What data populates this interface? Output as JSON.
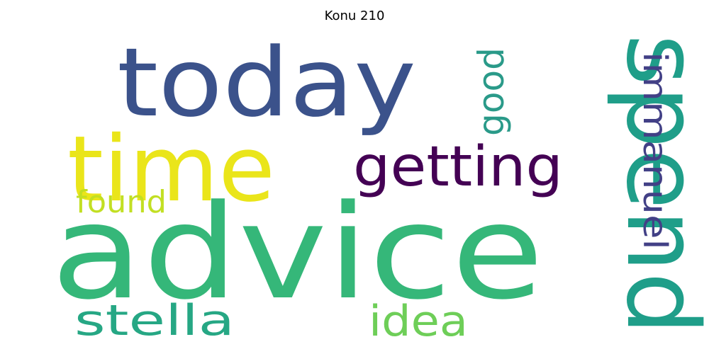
{
  "title": "Konu 210",
  "words": [
    {
      "id": "advice",
      "text": "advice",
      "color": "#35b779"
    },
    {
      "id": "today",
      "text": "today",
      "color": "#3b528b"
    },
    {
      "id": "time",
      "text": "time",
      "color": "#eae51a"
    },
    {
      "id": "spend",
      "text": "spend",
      "color": "#1f9e89"
    },
    {
      "id": "getting",
      "text": "getting",
      "color": "#440154"
    },
    {
      "id": "stella",
      "text": "stella",
      "color": "#26a784"
    },
    {
      "id": "idea",
      "text": "idea",
      "color": "#6ece58"
    },
    {
      "id": "found",
      "text": "found",
      "color": "#c2df23"
    },
    {
      "id": "good",
      "text": "good",
      "color": "#2a9a89"
    },
    {
      "id": "immanuel",
      "text": "immanuel",
      "color": "#424086"
    }
  ]
}
